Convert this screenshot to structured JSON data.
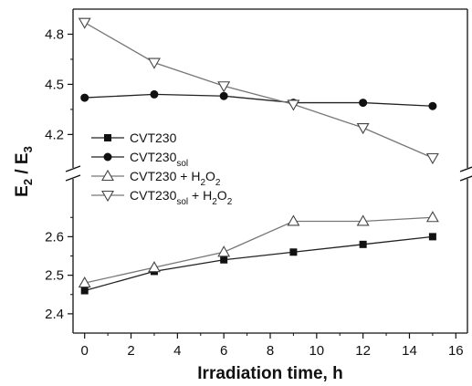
{
  "chart_data": {
    "type": "line",
    "broken_y_axis": true,
    "xlabel": "Irradiation time, h",
    "ylabel": {
      "main": "E",
      "sub1": "2",
      "sep": " / E",
      "sub2": "3"
    },
    "xlim": [
      -0.5,
      16.5
    ],
    "xticks": [
      "0",
      "2",
      "4",
      "6",
      "8",
      "10",
      "12",
      "14",
      "16"
    ],
    "ylim_lower": [
      2.35,
      2.75
    ],
    "ylim_upper": [
      4.0,
      4.95
    ],
    "yticks_lower": [
      "2.4",
      "2.5",
      "2.6"
    ],
    "yticks_upper": [
      "4.2",
      "4.5",
      "4.8"
    ],
    "legend_position": "left, upper segment",
    "series": [
      {
        "key": "cvt230",
        "name": "CVT230",
        "legend": {
          "base": "CVT230",
          "sub": "",
          "rest": "",
          "sub2": ""
        },
        "marker": "filled-square",
        "line_color": "#222222",
        "x": [
          0,
          3,
          6,
          9,
          12,
          15
        ],
        "y": [
          2.46,
          2.51,
          2.54,
          2.56,
          2.58,
          2.6
        ]
      },
      {
        "key": "cvt230sol",
        "name": "CVT230sol",
        "legend": {
          "base": "CVT230",
          "sub": "sol",
          "rest": "",
          "sub2": ""
        },
        "marker": "filled-circle",
        "line_color": "#222222",
        "x": [
          0,
          3,
          6,
          9,
          12,
          15
        ],
        "y": [
          4.42,
          4.44,
          4.43,
          4.39,
          4.39,
          4.37
        ]
      },
      {
        "key": "cvt230h2o2",
        "name": "CVT230 + H2O2",
        "legend": {
          "base": "CVT230 + H",
          "sub": "2",
          "rest": "O",
          "sub2": "2"
        },
        "marker": "open-triangle-up",
        "line_color": "#777777",
        "x": [
          0,
          3,
          6,
          9,
          12,
          15
        ],
        "y": [
          2.48,
          2.52,
          2.56,
          2.64,
          2.64,
          2.65
        ]
      },
      {
        "key": "cvt230solh2o2",
        "name": "CVT230sol + H2O2",
        "legend": {
          "base": "CVT230",
          "sub": "sol",
          "rest": " + H",
          "sub2": "2",
          "rest2": "O",
          "sub3": "2"
        },
        "marker": "open-triangle-down",
        "line_color": "#777777",
        "x": [
          0,
          3,
          6,
          9,
          12,
          15
        ],
        "y": [
          4.87,
          4.63,
          4.49,
          4.38,
          4.24,
          4.06
        ]
      }
    ]
  }
}
